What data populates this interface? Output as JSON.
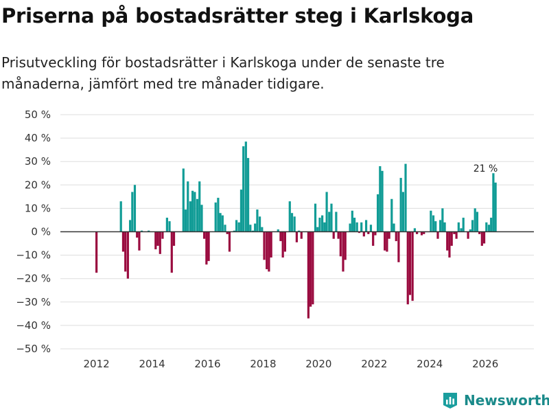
{
  "title": "Priserna på bostadsrätter steg i Karlskoga",
  "subtitle": "Prisutveckling för bostadsrätter i Karlskoga under de senaste tre månaderna, jämfört med tre månader tidigare.",
  "brand": {
    "name": "Newsworthy",
    "icon": "bar-chart-logo-icon",
    "color": "#1a9e9e"
  },
  "colors": {
    "positive": "#119c96",
    "negative": "#9a0b3f",
    "grid": "#dddddd",
    "zero": "#333333"
  },
  "chart_data": {
    "type": "bar",
    "title": "Priserna på bostadsrätter steg i Karlskoga",
    "xlabel": "",
    "ylabel": "",
    "ylim": [
      -50,
      50
    ],
    "yticks": [
      50,
      40,
      30,
      20,
      10,
      0,
      -10,
      -20,
      -30,
      -40,
      -50
    ],
    "ytick_labels": [
      "50 %",
      "40 %",
      "30 %",
      "20 %",
      "10 %",
      "0 %",
      "−10 %",
      "−20 %",
      "−30 %",
      "−40 %",
      "−50 %"
    ],
    "xticks": [
      2012,
      2014,
      2016,
      2018,
      2020,
      2022,
      2024,
      2026
    ],
    "xtick_labels": [
      "2012",
      "2014",
      "2016",
      "2018",
      "2020",
      "2022",
      "2024",
      "2026"
    ],
    "xlim": [
      2010.7,
      2027.75
    ],
    "annotation": {
      "x": 2025.96,
      "value": 21,
      "text": "21 %"
    },
    "points": [
      {
        "x": 2012.0,
        "value": -17.5
      },
      {
        "x": 2012.88,
        "value": 13
      },
      {
        "x": 2012.96,
        "value": -8.5
      },
      {
        "x": 2013.04,
        "value": -17
      },
      {
        "x": 2013.13,
        "value": -20
      },
      {
        "x": 2013.21,
        "value": 5
      },
      {
        "x": 2013.29,
        "value": 17
      },
      {
        "x": 2013.38,
        "value": 20
      },
      {
        "x": 2013.46,
        "value": -2.5
      },
      {
        "x": 2013.54,
        "value": -8
      },
      {
        "x": 2013.63,
        "value": 0.5
      },
      {
        "x": 2013.88,
        "value": 0.5
      },
      {
        "x": 2014.13,
        "value": -7.5
      },
      {
        "x": 2014.21,
        "value": -6
      },
      {
        "x": 2014.29,
        "value": -9.5
      },
      {
        "x": 2014.38,
        "value": -3
      },
      {
        "x": 2014.54,
        "value": 6
      },
      {
        "x": 2014.63,
        "value": 4.5
      },
      {
        "x": 2014.71,
        "value": -17.5
      },
      {
        "x": 2014.79,
        "value": -6
      },
      {
        "x": 2015.13,
        "value": 27
      },
      {
        "x": 2015.21,
        "value": 9.5
      },
      {
        "x": 2015.29,
        "value": 21.5
      },
      {
        "x": 2015.38,
        "value": 13
      },
      {
        "x": 2015.46,
        "value": 17.5
      },
      {
        "x": 2015.54,
        "value": 17
      },
      {
        "x": 2015.63,
        "value": 14
      },
      {
        "x": 2015.71,
        "value": 21.5
      },
      {
        "x": 2015.79,
        "value": 11.5
      },
      {
        "x": 2015.88,
        "value": -3
      },
      {
        "x": 2015.96,
        "value": -14
      },
      {
        "x": 2016.04,
        "value": -12.5
      },
      {
        "x": 2016.29,
        "value": 12.5
      },
      {
        "x": 2016.38,
        "value": 14.5
      },
      {
        "x": 2016.46,
        "value": 8
      },
      {
        "x": 2016.54,
        "value": 7
      },
      {
        "x": 2016.63,
        "value": 3
      },
      {
        "x": 2016.71,
        "value": -1
      },
      {
        "x": 2016.79,
        "value": -8.5
      },
      {
        "x": 2016.96,
        "value": 0.5
      },
      {
        "x": 2017.04,
        "value": 5
      },
      {
        "x": 2017.13,
        "value": 4
      },
      {
        "x": 2017.21,
        "value": 18
      },
      {
        "x": 2017.29,
        "value": 36.5
      },
      {
        "x": 2017.38,
        "value": 38.5
      },
      {
        "x": 2017.46,
        "value": 31.5
      },
      {
        "x": 2017.54,
        "value": 3
      },
      {
        "x": 2017.63,
        "value": 0.5
      },
      {
        "x": 2017.71,
        "value": 3.5
      },
      {
        "x": 2017.79,
        "value": 9.5
      },
      {
        "x": 2017.88,
        "value": 6.5
      },
      {
        "x": 2017.96,
        "value": 2
      },
      {
        "x": 2018.04,
        "value": -12
      },
      {
        "x": 2018.13,
        "value": -16
      },
      {
        "x": 2018.21,
        "value": -17
      },
      {
        "x": 2018.29,
        "value": -11
      },
      {
        "x": 2018.54,
        "value": 1
      },
      {
        "x": 2018.63,
        "value": -4
      },
      {
        "x": 2018.71,
        "value": -11
      },
      {
        "x": 2018.79,
        "value": -8.5
      },
      {
        "x": 2018.96,
        "value": 13
      },
      {
        "x": 2019.04,
        "value": 8
      },
      {
        "x": 2019.13,
        "value": 6.5
      },
      {
        "x": 2019.21,
        "value": -4.5
      },
      {
        "x": 2019.29,
        "value": 0.5
      },
      {
        "x": 2019.38,
        "value": -3
      },
      {
        "x": 2019.63,
        "value": -37
      },
      {
        "x": 2019.71,
        "value": -32
      },
      {
        "x": 2019.79,
        "value": -31
      },
      {
        "x": 2019.88,
        "value": 12
      },
      {
        "x": 2019.96,
        "value": 2
      },
      {
        "x": 2020.04,
        "value": 6
      },
      {
        "x": 2020.13,
        "value": 7
      },
      {
        "x": 2020.21,
        "value": 4
      },
      {
        "x": 2020.29,
        "value": 17
      },
      {
        "x": 2020.38,
        "value": 8.5
      },
      {
        "x": 2020.46,
        "value": 12
      },
      {
        "x": 2020.54,
        "value": -3
      },
      {
        "x": 2020.63,
        "value": 8.5
      },
      {
        "x": 2020.71,
        "value": -3
      },
      {
        "x": 2020.79,
        "value": -10.5
      },
      {
        "x": 2020.88,
        "value": -17
      },
      {
        "x": 2020.96,
        "value": -12
      },
      {
        "x": 2021.13,
        "value": 3.5
      },
      {
        "x": 2021.21,
        "value": 9
      },
      {
        "x": 2021.29,
        "value": 6
      },
      {
        "x": 2021.38,
        "value": 4
      },
      {
        "x": 2021.46,
        "value": -0.5
      },
      {
        "x": 2021.54,
        "value": 4
      },
      {
        "x": 2021.63,
        "value": -2
      },
      {
        "x": 2021.71,
        "value": 5
      },
      {
        "x": 2021.79,
        "value": -1
      },
      {
        "x": 2021.88,
        "value": 3
      },
      {
        "x": 2021.96,
        "value": -6
      },
      {
        "x": 2022.04,
        "value": -1.5
      },
      {
        "x": 2022.13,
        "value": 16
      },
      {
        "x": 2022.21,
        "value": 28
      },
      {
        "x": 2022.29,
        "value": 26
      },
      {
        "x": 2022.38,
        "value": -8
      },
      {
        "x": 2022.46,
        "value": -8.5
      },
      {
        "x": 2022.54,
        "value": -3
      },
      {
        "x": 2022.63,
        "value": 14
      },
      {
        "x": 2022.71,
        "value": 3.5
      },
      {
        "x": 2022.79,
        "value": -4
      },
      {
        "x": 2022.88,
        "value": -13
      },
      {
        "x": 2022.96,
        "value": 23
      },
      {
        "x": 2023.04,
        "value": 17
      },
      {
        "x": 2023.13,
        "value": 29
      },
      {
        "x": 2023.21,
        "value": -31
      },
      {
        "x": 2023.29,
        "value": -27
      },
      {
        "x": 2023.38,
        "value": -29.5
      },
      {
        "x": 2023.46,
        "value": 1.5
      },
      {
        "x": 2023.54,
        "value": -1
      },
      {
        "x": 2023.71,
        "value": -1.5
      },
      {
        "x": 2023.79,
        "value": -1
      },
      {
        "x": 2024.04,
        "value": 9
      },
      {
        "x": 2024.13,
        "value": 7
      },
      {
        "x": 2024.21,
        "value": 4.5
      },
      {
        "x": 2024.29,
        "value": -3
      },
      {
        "x": 2024.38,
        "value": 5
      },
      {
        "x": 2024.46,
        "value": 10
      },
      {
        "x": 2024.54,
        "value": 4
      },
      {
        "x": 2024.63,
        "value": -8
      },
      {
        "x": 2024.71,
        "value": -11
      },
      {
        "x": 2024.79,
        "value": -6
      },
      {
        "x": 2024.88,
        "value": -1
      },
      {
        "x": 2024.96,
        "value": -3
      },
      {
        "x": 2025.04,
        "value": 4
      },
      {
        "x": 2025.13,
        "value": 1.5
      },
      {
        "x": 2025.21,
        "value": 6
      },
      {
        "x": 2025.38,
        "value": -3
      },
      {
        "x": 2025.46,
        "value": 1
      },
      {
        "x": 2025.54,
        "value": 5
      },
      {
        "x": 2025.63,
        "value": 10
      },
      {
        "x": 2025.71,
        "value": 8.5
      },
      {
        "x": 2025.79,
        "value": -1
      },
      {
        "x": 2025.88,
        "value": -6
      },
      {
        "x": 2025.96,
        "value": -5
      },
      {
        "x": 2026.04,
        "value": 4
      },
      {
        "x": 2026.13,
        "value": 3
      },
      {
        "x": 2026.21,
        "value": 6
      },
      {
        "x": 2026.29,
        "value": 25
      },
      {
        "x": 2026.37,
        "value": 21
      }
    ]
  }
}
